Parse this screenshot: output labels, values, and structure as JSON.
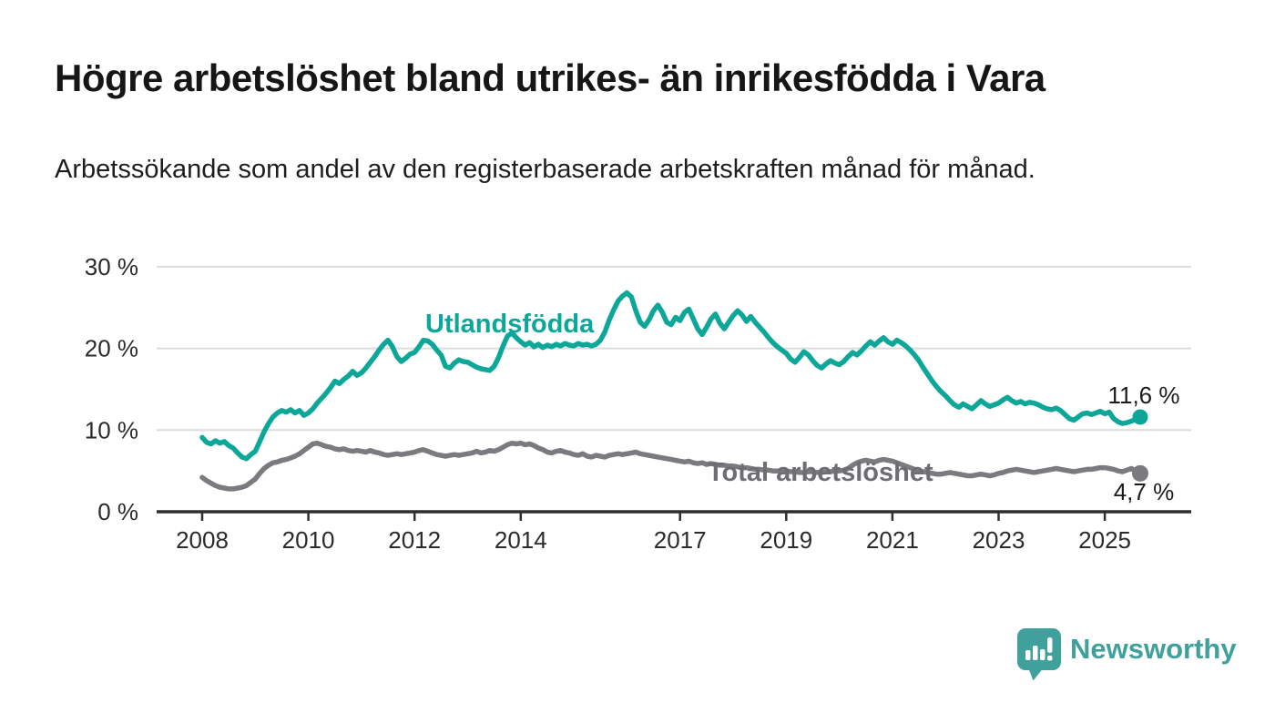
{
  "header": {
    "title": "Högre arbetslöshet bland utrikes- än inrikesfödda i Vara",
    "subtitle": "Arbetssökande som andel av den registerbaserade arbetskraften månad för månad."
  },
  "branding": {
    "logo_text": "Newsworthy"
  },
  "colors": {
    "accent_teal": "#0da79a",
    "line_gray": "#7a7a7f",
    "gray_label": "#6d6d72",
    "text_dark": "#1b1b1b",
    "grid": "#dcdcdc",
    "axis": "#2e2e2e",
    "logo_teal": "#40a09c"
  },
  "chart_data": {
    "type": "line",
    "title": "Högre arbetslöshet bland utrikes- än inrikesfödda i Vara",
    "xlabel": "",
    "ylabel": "Arbetssökande som andel av den registerbaserade arbetskraften",
    "x_axis": {
      "start_year": 2008,
      "step_months": 1,
      "ticks": [
        2008,
        2010,
        2012,
        2014,
        2017,
        2019,
        2021,
        2023,
        2025
      ]
    },
    "y_axis": {
      "range": [
        0,
        32
      ],
      "grid": true,
      "ticks": [
        {
          "value": 0,
          "label": "0 %"
        },
        {
          "value": 10,
          "label": "10 %"
        },
        {
          "value": 20,
          "label": "20 %"
        },
        {
          "value": 30,
          "label": "30 %"
        }
      ]
    },
    "legend_position": "inline-labels",
    "series": [
      {
        "name": "Utlandsfödda",
        "color": "#0da79a",
        "end_label": "11,6 %",
        "last_value": 11.6,
        "values": [
          9.1,
          8.5,
          8.3,
          8.7,
          8.4,
          8.6,
          8.1,
          7.8,
          7.2,
          6.7,
          6.5,
          7.0,
          7.4,
          8.6,
          9.8,
          10.8,
          11.6,
          12.1,
          12.4,
          12.2,
          12.5,
          12.1,
          12.4,
          11.8,
          12.1,
          12.6,
          13.3,
          13.9,
          14.5,
          15.2,
          16.0,
          15.7,
          16.2,
          16.6,
          17.2,
          16.7,
          17.0,
          17.6,
          18.3,
          19.0,
          19.8,
          20.5,
          21.0,
          20.2,
          19.0,
          18.4,
          18.8,
          19.3,
          19.5,
          20.2,
          21.0,
          20.9,
          20.5,
          19.8,
          19.2,
          17.8,
          17.6,
          18.2,
          18.6,
          18.4,
          18.3,
          18.0,
          17.7,
          17.5,
          17.4,
          17.3,
          17.8,
          18.9,
          20.3,
          21.5,
          21.9,
          21.3,
          20.8,
          20.4,
          20.7,
          20.2,
          20.5,
          20.1,
          20.4,
          20.2,
          20.5,
          20.3,
          20.6,
          20.4,
          20.3,
          20.6,
          20.4,
          20.5,
          20.3,
          20.5,
          21.0,
          22.0,
          23.5,
          24.7,
          25.8,
          26.4,
          26.8,
          26.3,
          24.6,
          23.2,
          22.7,
          23.5,
          24.6,
          25.3,
          24.4,
          23.2,
          22.9,
          23.8,
          23.4,
          24.4,
          24.8,
          23.6,
          22.4,
          21.7,
          22.6,
          23.6,
          24.2,
          23.1,
          22.4,
          23.2,
          24.0,
          24.6,
          24.1,
          23.3,
          23.9,
          23.2,
          22.6,
          22.0,
          21.3,
          20.7,
          20.2,
          19.8,
          19.4,
          18.7,
          18.3,
          18.9,
          19.6,
          19.2,
          18.5,
          17.9,
          17.6,
          18.1,
          18.5,
          18.2,
          18.0,
          18.4,
          19.0,
          19.5,
          19.2,
          19.7,
          20.3,
          20.8,
          20.4,
          20.9,
          21.3,
          20.8,
          20.5,
          21.0,
          20.7,
          20.3,
          19.8,
          19.2,
          18.5,
          17.6,
          16.8,
          16.0,
          15.3,
          14.7,
          14.2,
          13.6,
          13.1,
          12.8,
          13.2,
          12.9,
          12.6,
          13.1,
          13.6,
          13.2,
          12.9,
          13.1,
          13.3,
          13.7,
          14.0,
          13.6,
          13.3,
          13.5,
          13.2,
          13.4,
          13.3,
          13.1,
          12.8,
          12.6,
          12.5,
          12.7,
          12.4,
          11.9,
          11.4,
          11.2,
          11.6,
          12.0,
          12.1,
          11.9,
          12.1,
          12.3,
          12.0,
          12.2,
          11.4,
          11.0,
          10.8,
          10.9,
          11.1,
          11.3,
          11.6
        ]
      },
      {
        "name": "Total arbetslöshet",
        "color": "#7a7a7f",
        "end_label": "4,7 %",
        "last_value": 4.7,
        "values": [
          4.2,
          3.8,
          3.5,
          3.2,
          3.0,
          2.9,
          2.8,
          2.8,
          2.9,
          3.0,
          3.2,
          3.6,
          4.0,
          4.7,
          5.3,
          5.7,
          6.0,
          6.1,
          6.3,
          6.4,
          6.6,
          6.8,
          7.1,
          7.5,
          7.9,
          8.3,
          8.4,
          8.2,
          8.0,
          7.9,
          7.7,
          7.6,
          7.7,
          7.5,
          7.4,
          7.5,
          7.4,
          7.3,
          7.5,
          7.3,
          7.2,
          7.0,
          6.9,
          7.0,
          7.1,
          7.0,
          7.1,
          7.2,
          7.3,
          7.5,
          7.6,
          7.4,
          7.2,
          7.0,
          6.9,
          6.8,
          6.9,
          7.0,
          6.9,
          7.0,
          7.1,
          7.2,
          7.4,
          7.2,
          7.3,
          7.5,
          7.4,
          7.6,
          7.9,
          8.2,
          8.4,
          8.3,
          8.4,
          8.2,
          8.3,
          8.1,
          7.8,
          7.6,
          7.3,
          7.2,
          7.4,
          7.5,
          7.3,
          7.2,
          7.0,
          6.9,
          7.1,
          6.8,
          6.7,
          6.9,
          6.8,
          6.7,
          6.9,
          7.0,
          7.1,
          7.0,
          7.1,
          7.2,
          7.3,
          7.1,
          7.0,
          6.9,
          6.8,
          6.7,
          6.6,
          6.5,
          6.4,
          6.3,
          6.2,
          6.1,
          6.2,
          6.0,
          5.9,
          6.0,
          5.8,
          5.9,
          5.8,
          5.7,
          5.7,
          5.6,
          5.6,
          5.5,
          5.4,
          5.4,
          5.3,
          5.2,
          5.2,
          5.1,
          5.1,
          5.0,
          5.0,
          5.0,
          5.0,
          4.9,
          4.9,
          4.8,
          4.8,
          4.9,
          4.9,
          4.8,
          4.8,
          4.9,
          4.9,
          5.0,
          5.0,
          5.1,
          5.3,
          5.7,
          6.0,
          6.2,
          6.3,
          6.2,
          6.1,
          6.3,
          6.4,
          6.3,
          6.2,
          6.0,
          5.8,
          5.6,
          5.4,
          5.2,
          5.0,
          4.9,
          4.8,
          4.7,
          4.6,
          4.6,
          4.7,
          4.8,
          4.7,
          4.6,
          4.5,
          4.4,
          4.4,
          4.5,
          4.6,
          4.5,
          4.4,
          4.5,
          4.7,
          4.8,
          5.0,
          5.1,
          5.2,
          5.1,
          5.0,
          4.9,
          4.8,
          4.9,
          5.0,
          5.1,
          5.2,
          5.3,
          5.2,
          5.1,
          5.0,
          4.9,
          5.0,
          5.1,
          5.2,
          5.2,
          5.3,
          5.4,
          5.4,
          5.3,
          5.2,
          5.0,
          4.9,
          5.1,
          5.3,
          5.0,
          4.7
        ]
      }
    ]
  }
}
